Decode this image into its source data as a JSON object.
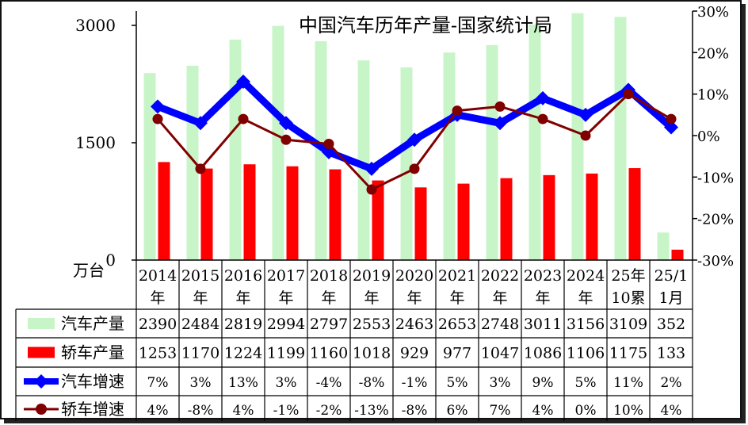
{
  "chart_data": {
    "type": "bar",
    "title": "中国汽车历年产量-国家统计局",
    "unit_label": "万台",
    "categories": [
      [
        "2014",
        "年"
      ],
      [
        "2015",
        "年"
      ],
      [
        "2016",
        "年"
      ],
      [
        "2017",
        "年"
      ],
      [
        "2018",
        "年"
      ],
      [
        "2019",
        "年"
      ],
      [
        "2020",
        "年"
      ],
      [
        "2021",
        "年"
      ],
      [
        "2022",
        "年"
      ],
      [
        "2023",
        "年"
      ],
      [
        "2024",
        "年"
      ],
      [
        "25年",
        "10累"
      ],
      [
        "25/1",
        "1月"
      ]
    ],
    "y_left": {
      "range": [
        0,
        3000
      ],
      "ticks": [
        "0",
        "1500",
        "3000"
      ],
      "tick_values": [
        0,
        1500,
        3000
      ]
    },
    "y_right": {
      "range": [
        -30,
        30
      ],
      "ticks": [
        "-30%",
        "-20%",
        "-10%",
        "0%",
        "10%",
        "20%",
        "30%"
      ],
      "tick_values": [
        -30,
        -20,
        -10,
        0,
        10,
        20,
        30
      ]
    },
    "series": [
      {
        "name": "汽车产量",
        "kind": "bar",
        "axis": "left",
        "color": "#c8f5c8",
        "values": [
          2390,
          2484,
          2819,
          2994,
          2797,
          2553,
          2463,
          2653,
          2748,
          3011,
          3156,
          3109,
          352
        ],
        "labels": [
          "2390",
          "2484",
          "2819",
          "2994",
          "2797",
          "2553",
          "2463",
          "2653",
          "2748",
          "3011",
          "3156",
          "3109",
          "352"
        ]
      },
      {
        "name": "轿车产量",
        "kind": "bar",
        "axis": "left",
        "color": "#ff0000",
        "values": [
          1253,
          1170,
          1224,
          1199,
          1160,
          1018,
          929,
          977,
          1047,
          1086,
          1106,
          1175,
          133
        ],
        "labels": [
          "1253",
          "1170",
          "1224",
          "1199",
          "1160",
          "1018",
          "929",
          "977",
          "1047",
          "1086",
          "1106",
          "1175",
          "133"
        ]
      },
      {
        "name": "汽车增速",
        "kind": "line",
        "axis": "right",
        "color": "#0000ff",
        "values": [
          7,
          3,
          13,
          3,
          -4,
          -8,
          -1,
          5,
          3,
          9,
          5,
          11,
          2
        ],
        "labels": [
          "7%",
          "3%",
          "13%",
          "3%",
          "-4%",
          "-8%",
          "-1%",
          "5%",
          "3%",
          "9%",
          "5%",
          "11%",
          "2%"
        ]
      },
      {
        "name": "轿车增速",
        "kind": "line",
        "axis": "right",
        "color": "#800000",
        "values": [
          4,
          -8,
          4,
          -1,
          -2,
          -13,
          -8,
          6,
          7,
          4,
          0,
          10,
          4
        ],
        "labels": [
          "4%",
          "-8%",
          "4%",
          "-1%",
          "-2%",
          "-13%",
          "-8%",
          "6%",
          "7%",
          "4%",
          "0%",
          "10%",
          "4%"
        ]
      }
    ]
  }
}
